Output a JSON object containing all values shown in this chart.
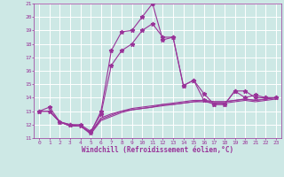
{
  "xlabel": "Windchill (Refroidissement éolien,°C)",
  "xlim": [
    -0.5,
    23.5
  ],
  "ylim": [
    11,
    21
  ],
  "xticks": [
    0,
    1,
    2,
    3,
    4,
    5,
    6,
    7,
    8,
    9,
    10,
    11,
    12,
    13,
    14,
    15,
    16,
    17,
    18,
    19,
    20,
    21,
    22,
    23
  ],
  "yticks": [
    11,
    12,
    13,
    14,
    15,
    16,
    17,
    18,
    19,
    20,
    21
  ],
  "bg_color": "#cde8e5",
  "grid_color": "#ffffff",
  "line_color": "#993399",
  "lines": [
    {
      "x": [
        0,
        1,
        2,
        3,
        4,
        5,
        6,
        7,
        8,
        9,
        10,
        11,
        12,
        13,
        14,
        15,
        16,
        17,
        18,
        19,
        20,
        21,
        22,
        23
      ],
      "y": [
        13,
        13.3,
        12.2,
        12.0,
        11.9,
        11.4,
        13.0,
        17.5,
        18.9,
        19.0,
        20.0,
        21.0,
        18.3,
        18.5,
        14.9,
        15.3,
        14.3,
        13.5,
        13.5,
        14.5,
        14.0,
        14.2,
        14.0,
        14.0
      ],
      "marker": true
    },
    {
      "x": [
        0,
        1,
        2,
        3,
        4,
        5,
        6,
        7,
        8,
        9,
        10,
        11,
        12,
        13,
        14,
        15,
        16,
        17,
        18,
        19,
        20,
        21,
        22,
        23
      ],
      "y": [
        13,
        13.0,
        12.2,
        12.0,
        12.0,
        11.5,
        12.8,
        16.4,
        17.5,
        18.0,
        19.0,
        19.5,
        18.5,
        18.5,
        14.9,
        15.3,
        13.8,
        13.5,
        13.5,
        14.5,
        14.5,
        14.0,
        14.0,
        14.0
      ],
      "marker": true
    },
    {
      "x": [
        0,
        1,
        2,
        3,
        4,
        5,
        6,
        7,
        8,
        9,
        10,
        11,
        12,
        13,
        14,
        15,
        16,
        17,
        18,
        19,
        20,
        21,
        22,
        23
      ],
      "y": [
        13,
        13.0,
        12.2,
        11.9,
        11.9,
        11.4,
        12.5,
        12.8,
        13.0,
        13.2,
        13.3,
        13.4,
        13.5,
        13.6,
        13.7,
        13.8,
        13.8,
        13.7,
        13.7,
        13.8,
        13.9,
        13.8,
        13.9,
        14.0
      ],
      "marker": false
    },
    {
      "x": [
        0,
        1,
        2,
        3,
        4,
        5,
        6,
        7,
        8,
        9,
        10,
        11,
        12,
        13,
        14,
        15,
        16,
        17,
        18,
        19,
        20,
        21,
        22,
        23
      ],
      "y": [
        13,
        13.0,
        12.2,
        11.9,
        11.9,
        11.3,
        12.3,
        12.6,
        12.9,
        13.1,
        13.2,
        13.3,
        13.4,
        13.5,
        13.6,
        13.7,
        13.7,
        13.6,
        13.6,
        13.7,
        13.8,
        13.7,
        13.8,
        13.9
      ],
      "marker": false
    },
    {
      "x": [
        0,
        1,
        2,
        3,
        4,
        5,
        6,
        7,
        8,
        9,
        10,
        11,
        12,
        13,
        14,
        15,
        16,
        17,
        18,
        19,
        20,
        21,
        22,
        23
      ],
      "y": [
        13,
        13.0,
        12.2,
        11.9,
        11.9,
        11.4,
        12.4,
        12.7,
        13.0,
        13.1,
        13.2,
        13.3,
        13.5,
        13.5,
        13.6,
        13.7,
        13.8,
        13.7,
        13.7,
        13.8,
        13.9,
        13.8,
        13.9,
        14.0
      ],
      "marker": false
    }
  ]
}
